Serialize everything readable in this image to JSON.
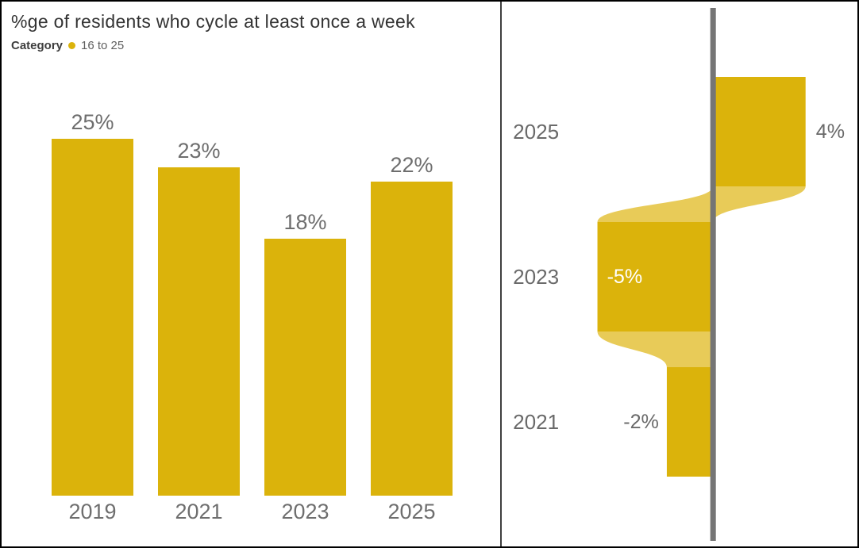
{
  "colors": {
    "bar": "#DBB30B",
    "ribbon": "#E8CB58",
    "axis_line": "#757575",
    "label_gray": "#6a6a6a",
    "label_on_bar": "#FFFFFF"
  },
  "left_panel": {
    "title": "%ge of residents who cycle at least once a week",
    "legend_title": "Category",
    "legend_item": "16 to 25"
  },
  "chart_data": [
    {
      "type": "bar",
      "orientation": "vertical",
      "title": "%ge of residents who cycle at least once a week",
      "legend": {
        "title": "Category",
        "items": [
          "16 to 25"
        ],
        "position": "top-left"
      },
      "categories": [
        "2019",
        "2021",
        "2023",
        "2025"
      ],
      "values": [
        25,
        23,
        18,
        22
      ],
      "data_labels": [
        "25%",
        "23%",
        "18%",
        "22%"
      ],
      "ylabel": "",
      "xlabel": "",
      "ylim": [
        0,
        25
      ],
      "grid": false
    },
    {
      "type": "bar",
      "subtype": "variance-ribbon",
      "orientation": "horizontal",
      "description": "year-over-year change with ribbon connectors around a zero baseline",
      "categories": [
        "2025",
        "2023",
        "2021"
      ],
      "values": [
        4,
        -5,
        -2
      ],
      "data_labels": [
        "4%",
        "-5%",
        "-2%"
      ],
      "baseline": 0,
      "grid": false
    }
  ]
}
